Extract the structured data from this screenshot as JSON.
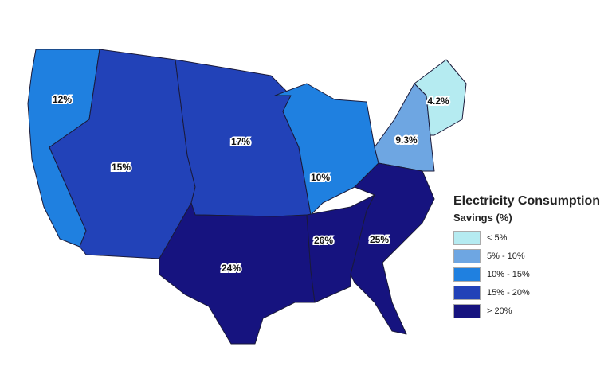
{
  "legend": {
    "title": "Electricity Consumption",
    "subtitle": "Savings (%)",
    "bins": [
      {
        "label": "< 5%",
        "color": "#b5ebf1"
      },
      {
        "label": "5% - 10%",
        "color": "#6ea6e2"
      },
      {
        "label": "10% - 15%",
        "color": "#1f80e0"
      },
      {
        "label": "15% - 20%",
        "color": "#2242b8"
      },
      {
        "label": "> 20%",
        "color": "#16137f"
      }
    ]
  },
  "regions": [
    {
      "name": "Pacific",
      "value": "12%",
      "bin": 2
    },
    {
      "name": "Mountain",
      "value": "15%",
      "bin": 3
    },
    {
      "name": "West North Central",
      "value": "17%",
      "bin": 3
    },
    {
      "name": "East North Central",
      "value": "10%",
      "bin": 2
    },
    {
      "name": "Mid-Atlantic",
      "value": "9.3%",
      "bin": 1
    },
    {
      "name": "New England",
      "value": "4.2%",
      "bin": 0
    },
    {
      "name": "West South Central",
      "value": "24%",
      "bin": 4
    },
    {
      "name": "East South Central",
      "value": "26%",
      "bin": 4
    },
    {
      "name": "South Atlantic",
      "value": "25%",
      "bin": 4
    }
  ]
}
